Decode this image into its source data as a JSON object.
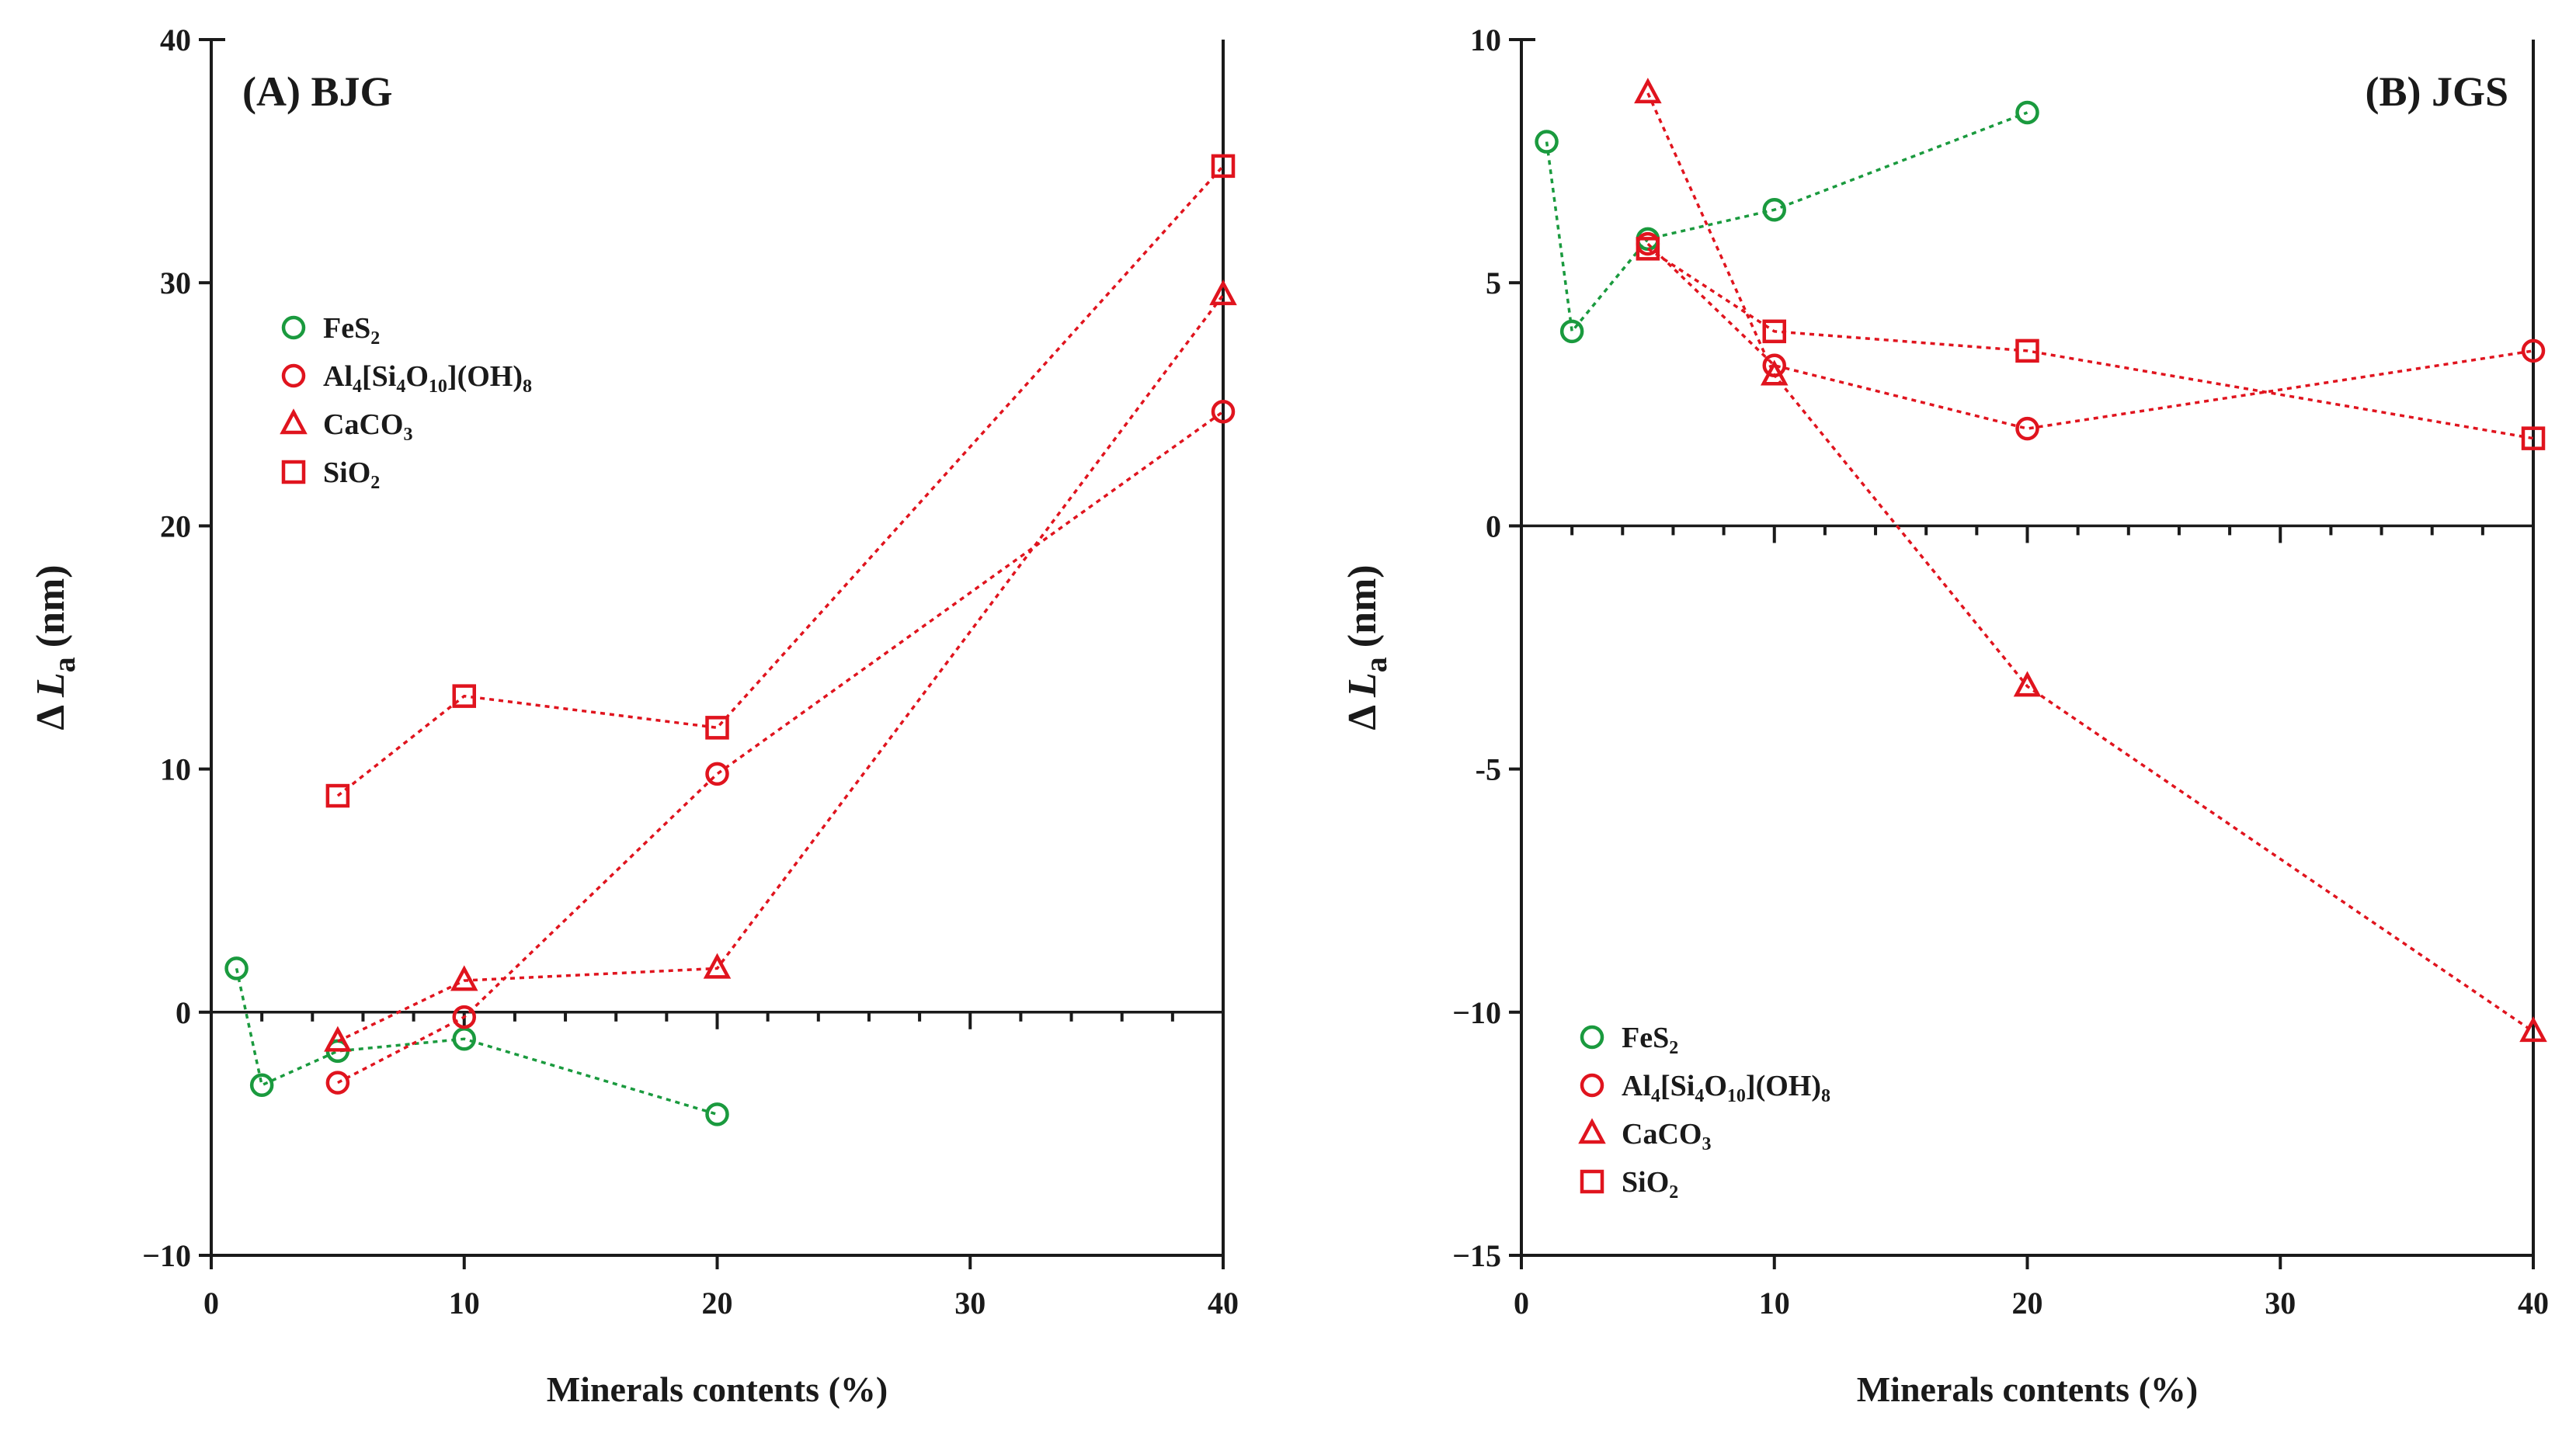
{
  "chart_data": [
    {
      "type": "scatter",
      "panel_id": "A",
      "title": "(A) BJG",
      "xlabel": "Minerals contents (%)",
      "ylabel_prefix": "Δ",
      "ylabel_var": "L",
      "ylabel_sub": "a",
      "ylabel_suffix": "(nm)",
      "xlim": [
        0,
        40
      ],
      "ylim": [
        -10,
        40
      ],
      "xticks_major": [
        0,
        10,
        20,
        30,
        40
      ],
      "xticks_minor": [
        2,
        4,
        6,
        8,
        12,
        14,
        16,
        18,
        22,
        24,
        26,
        28,
        32,
        34,
        36,
        38
      ],
      "yticks": [
        -10,
        0,
        10,
        20,
        30,
        40
      ],
      "ytick_labels": [
        "−10",
        "0",
        "10",
        "20",
        "30",
        "40"
      ],
      "legend_position": "upper-left",
      "series": [
        {
          "name": "FeS",
          "sub": "2",
          "marker": "circle",
          "color": "#1a9a3e",
          "x": [
            1,
            2,
            5,
            10,
            20
          ],
          "y": [
            1.8,
            -3.0,
            -1.6,
            -1.1,
            -4.2
          ]
        },
        {
          "name": "Al",
          "sub": "4",
          "name2": "[Si",
          "sub2": "4",
          "name3": "O",
          "sub3": "10",
          "name4": "](OH)",
          "sub4": "8",
          "marker": "circle",
          "color": "#e0141e",
          "x": [
            5,
            10,
            20,
            40
          ],
          "y": [
            -2.9,
            -0.2,
            9.8,
            24.7
          ]
        },
        {
          "name": "CaCO",
          "sub": "3",
          "marker": "triangle",
          "color": "#e0141e",
          "x": [
            5,
            10,
            20,
            40
          ],
          "y": [
            -1.2,
            1.3,
            1.8,
            29.5
          ]
        },
        {
          "name": "SiO",
          "sub": "2",
          "marker": "square",
          "color": "#e0141e",
          "x": [
            5,
            10,
            20,
            40
          ],
          "y": [
            8.9,
            13.0,
            11.7,
            34.8
          ]
        }
      ]
    },
    {
      "type": "scatter",
      "panel_id": "B",
      "title": "(B) JGS",
      "xlabel": "Minerals contents (%)",
      "ylabel_prefix": "Δ",
      "ylabel_var": "L",
      "ylabel_sub": "a",
      "ylabel_suffix": "(nm)",
      "xlim": [
        0,
        40
      ],
      "ylim": [
        -15,
        10
      ],
      "xticks_major": [
        0,
        10,
        20,
        30,
        40
      ],
      "xticks_minor": [
        2,
        4,
        6,
        8,
        12,
        14,
        16,
        18,
        22,
        24,
        26,
        28,
        32,
        34,
        36,
        38
      ],
      "yticks": [
        -15,
        -10,
        -5,
        0,
        5,
        10
      ],
      "ytick_labels": [
        "−15",
        "−10",
        "-5",
        "0",
        "5",
        "10"
      ],
      "legend_position": "lower-left",
      "series": [
        {
          "name": "FeS",
          "sub": "2",
          "marker": "circle",
          "color": "#1a9a3e",
          "x": [
            1,
            2,
            5,
            10,
            20
          ],
          "y": [
            7.9,
            4.0,
            5.9,
            6.5,
            8.5
          ]
        },
        {
          "name": "Al",
          "sub": "4",
          "name2": "[Si",
          "sub2": "4",
          "name3": "O",
          "sub3": "10",
          "name4": "](OH)",
          "sub4": "8",
          "marker": "circle",
          "color": "#e0141e",
          "x": [
            5,
            10,
            20,
            40
          ],
          "y": [
            5.8,
            3.3,
            2.0,
            3.6
          ]
        },
        {
          "name": "CaCO",
          "sub": "3",
          "marker": "triangle",
          "color": "#e0141e",
          "x": [
            5,
            10,
            20,
            40
          ],
          "y": [
            8.9,
            3.1,
            -3.3,
            -10.4
          ]
        },
        {
          "name": "SiO",
          "sub": "2",
          "marker": "square",
          "color": "#e0141e",
          "x": [
            5,
            10,
            20,
            40
          ],
          "y": [
            5.7,
            4.0,
            3.6,
            1.8
          ]
        }
      ]
    }
  ]
}
